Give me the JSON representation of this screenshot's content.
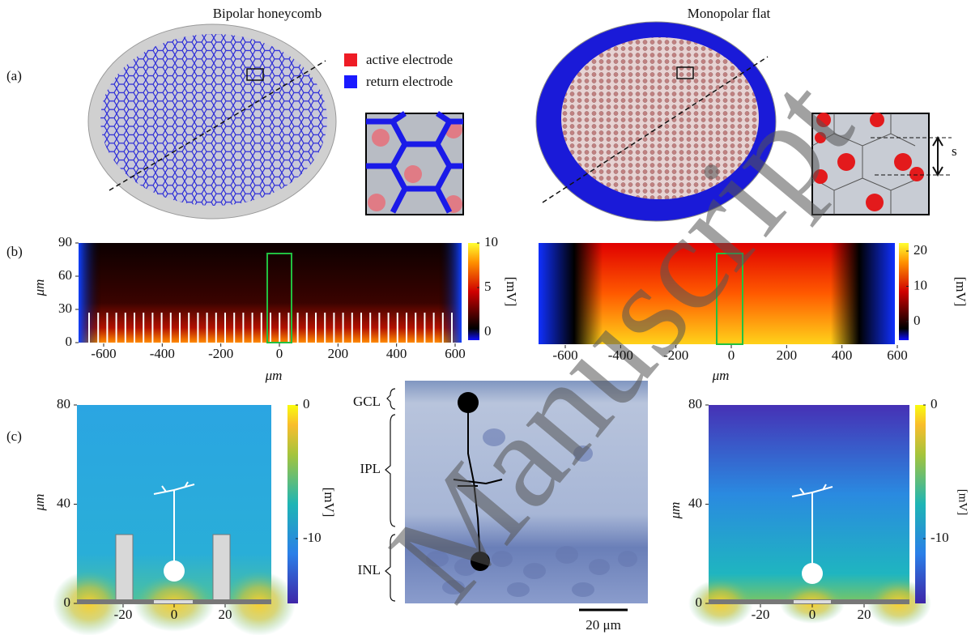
{
  "titles": [
    "Bipolar honeycomb",
    "Monopolar flat"
  ],
  "panel_labels": [
    "(a)",
    "(b)",
    "(c)"
  ],
  "legend": [
    "active electrode",
    "return electrode"
  ],
  "spacing_label": "s",
  "axis_unit": "μm",
  "colorbar_label": "[mV]",
  "b_left": {
    "yticks": [
      0,
      30,
      60,
      90
    ],
    "xticks": [
      -600,
      -400,
      -200,
      0,
      200,
      400,
      600
    ],
    "cbar_ticks": [
      0,
      5,
      10
    ]
  },
  "b_right": {
    "xticks": [
      -600,
      -400,
      -200,
      0,
      200,
      400,
      600
    ],
    "cbar_ticks": [
      0,
      10,
      20
    ]
  },
  "c_left": {
    "yticks": [
      0,
      40,
      80
    ],
    "xticks": [
      -20,
      0,
      20
    ],
    "cbar_ticks": [
      -10,
      0
    ]
  },
  "c_right": {
    "yticks": [
      0,
      40,
      80
    ],
    "xticks": [
      -20,
      0,
      20
    ],
    "cbar_ticks": [
      -10,
      0
    ]
  },
  "layers": [
    "GCL",
    "IPL",
    "INL"
  ],
  "scale_bar": "20 μm",
  "watermark": "Manuscript"
}
